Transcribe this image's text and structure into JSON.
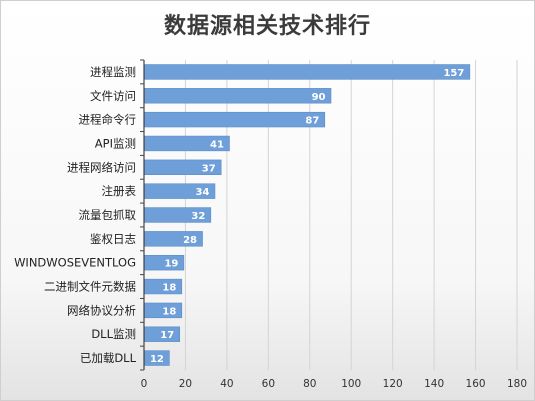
{
  "chart_data": {
    "type": "bar",
    "orientation": "horizontal",
    "title": "数据源相关技术排行",
    "categories": [
      "进程监测",
      "文件访问",
      "进程命令行",
      "API监测",
      "进程网络访问",
      "注册表",
      "流量包抓取",
      "鉴权日志",
      "WINDWOSEVENTLOG",
      "二进制文件元数据",
      "网络协议分析",
      "DLL监测",
      "已加载DLL"
    ],
    "values": [
      157,
      90,
      87,
      41,
      37,
      34,
      32,
      28,
      19,
      18,
      18,
      17,
      12
    ],
    "xlim": [
      0,
      180
    ],
    "xticks": [
      0,
      20,
      40,
      60,
      80,
      100,
      120,
      140,
      160,
      180
    ],
    "grid": true,
    "data_labels": true,
    "bar_color": "#6f9fd8"
  }
}
